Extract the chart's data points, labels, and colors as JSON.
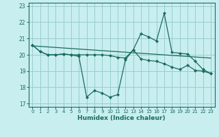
{
  "xlabel": "Humidex (Indice chaleur)",
  "background_color": "#c8eef0",
  "grid_color": "#99cccc",
  "line_color": "#1a6b5a",
  "xlim": [
    -0.5,
    23.5
  ],
  "ylim": [
    16.8,
    23.2
  ],
  "yticks": [
    17,
    18,
    19,
    20,
    21,
    22,
    23
  ],
  "xticks": [
    0,
    1,
    2,
    3,
    4,
    5,
    6,
    7,
    8,
    9,
    10,
    11,
    12,
    13,
    14,
    15,
    16,
    17,
    18,
    19,
    20,
    21,
    22,
    23
  ],
  "curve1_x": [
    0,
    1,
    2,
    3,
    4,
    5,
    6,
    7,
    8,
    9,
    10,
    11,
    12,
    13,
    14,
    15,
    16,
    17,
    18,
    19,
    20,
    21,
    22,
    23
  ],
  "curve1_y": [
    20.6,
    20.2,
    20.0,
    20.0,
    20.05,
    20.0,
    19.9,
    17.4,
    17.8,
    17.65,
    17.4,
    17.55,
    19.7,
    20.3,
    19.75,
    19.65,
    19.6,
    19.45,
    19.25,
    19.1,
    19.35,
    19.05,
    19.0,
    18.85
  ],
  "curve2_x": [
    0,
    1,
    2,
    3,
    4,
    5,
    6,
    7,
    8,
    9,
    10,
    11,
    12,
    13,
    14,
    15,
    16,
    17,
    18,
    19,
    20,
    21,
    22,
    23
  ],
  "curve2_y": [
    20.6,
    20.2,
    20.0,
    20.0,
    20.05,
    20.0,
    20.0,
    20.0,
    20.0,
    20.0,
    19.95,
    19.85,
    19.8,
    20.3,
    21.3,
    21.1,
    20.85,
    22.55,
    20.15,
    20.1,
    20.05,
    19.6,
    19.1,
    18.85
  ],
  "curve3_x": [
    0,
    23
  ],
  "curve3_y": [
    20.55,
    19.8
  ]
}
